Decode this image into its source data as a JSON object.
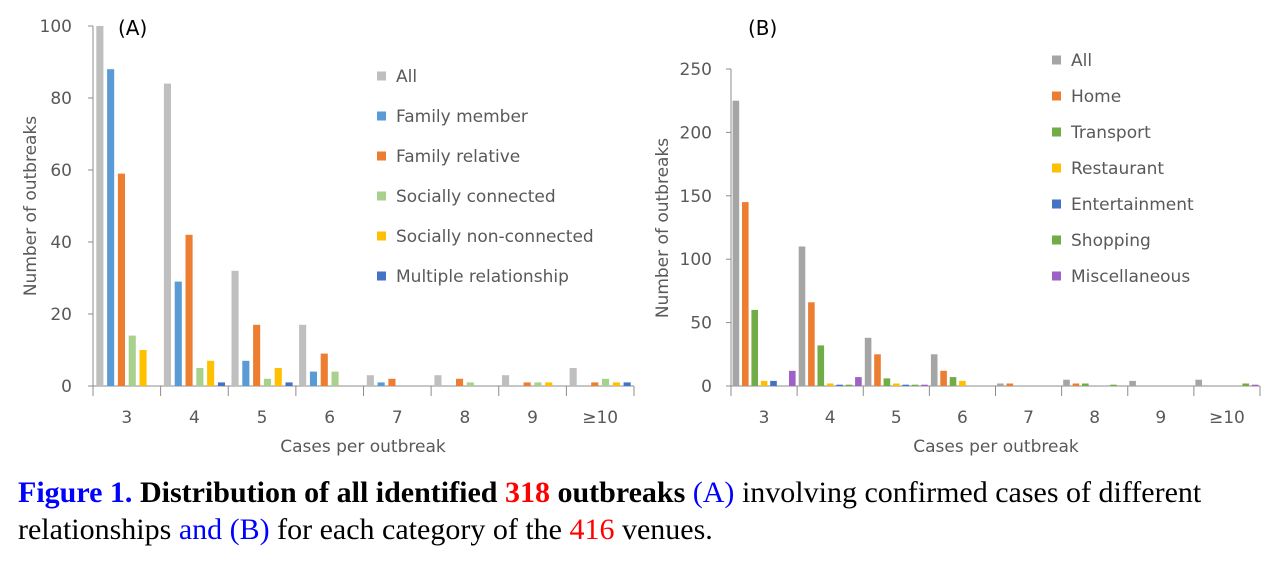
{
  "chart_data": [
    {
      "type": "bar",
      "panel_label": "(A)",
      "xlabel": "Cases per outbreak",
      "ylabel": "Number of  outbreaks",
      "categories": [
        "3",
        "4",
        "5",
        "6",
        "7",
        "8",
        "9",
        "≥10"
      ],
      "ylim": [
        0,
        100
      ],
      "yticks": [
        0,
        20,
        40,
        60,
        80,
        100
      ],
      "legend_position": "right",
      "series": [
        {
          "name": "All",
          "color": "#bfbfbf",
          "values": [
            100,
            84,
            32,
            17,
            3,
            3,
            3,
            5
          ]
        },
        {
          "name": "Family member",
          "color": "#5b9bd5",
          "values": [
            88,
            29,
            7,
            4,
            1,
            0,
            0,
            0
          ]
        },
        {
          "name": "Family relative",
          "color": "#ed7d31",
          "values": [
            59,
            42,
            17,
            9,
            2,
            2,
            1,
            1
          ]
        },
        {
          "name": "Socially connected",
          "color": "#a9d18e",
          "values": [
            14,
            5,
            2,
            4,
            0,
            1,
            1,
            2
          ]
        },
        {
          "name": "Socially non-connected",
          "color": "#ffc000",
          "values": [
            10,
            7,
            5,
            0,
            0,
            0,
            1,
            1
          ]
        },
        {
          "name": "Multiple relationship",
          "color": "#4472c4",
          "values": [
            0,
            1,
            1,
            0,
            0,
            0,
            0,
            1
          ]
        }
      ]
    },
    {
      "type": "bar",
      "panel_label": "(B)",
      "xlabel": "Cases per outbreak",
      "ylabel": "Number of outbreaks",
      "categories": [
        "3",
        "4",
        "5",
        "6",
        "7",
        "8",
        "9",
        "≥10"
      ],
      "ylim": [
        0,
        250
      ],
      "yticks": [
        0,
        50,
        100,
        150,
        200,
        250
      ],
      "legend_position": "top-right",
      "series": [
        {
          "name": "All",
          "color": "#a5a5a5",
          "values": [
            225,
            110,
            38,
            25,
            2,
            5,
            4,
            5
          ]
        },
        {
          "name": "Home",
          "color": "#ed7d31",
          "values": [
            145,
            66,
            25,
            12,
            2,
            2,
            0,
            0
          ]
        },
        {
          "name": "Transport",
          "color": "#70ad47",
          "values": [
            60,
            32,
            6,
            7,
            0,
            2,
            0,
            0
          ]
        },
        {
          "name": "Restaurant",
          "color": "#ffc000",
          "values": [
            4,
            2,
            2,
            4,
            0,
            0,
            0,
            0
          ]
        },
        {
          "name": "Entertainment",
          "color": "#4472c4",
          "values": [
            4,
            1,
            1,
            0,
            0,
            0,
            0,
            0
          ]
        },
        {
          "name": "Shopping",
          "color": "#70ad47",
          "values": [
            0,
            1,
            1,
            0,
            0,
            1,
            0,
            2
          ]
        },
        {
          "name": "Miscellaneous",
          "color": "#9e61c6",
          "values": [
            12,
            7,
            1,
            0,
            0,
            0,
            0,
            1
          ]
        }
      ]
    }
  ],
  "caption": {
    "figure_label": "Figure 1.",
    "bold_text_1": "Distribution of all identified",
    "outbreak_count": "318",
    "bold_text_2": "outbreaks",
    "part_a": "(A)",
    "text_1": "involving confirmed cases of different relationships",
    "part_b": "and (B)",
    "text_2": "for each category of the",
    "venue_count": "416",
    "text_3": "venues."
  }
}
